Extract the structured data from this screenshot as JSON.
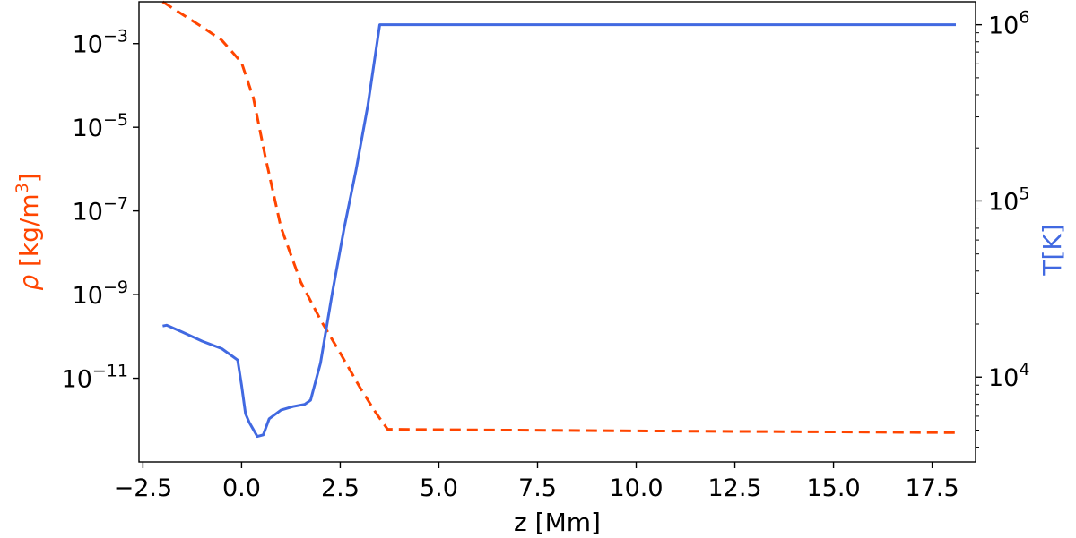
{
  "chart_data": {
    "type": "line",
    "xlabel": "z [Mm]",
    "ylabel_left": {
      "prefix": "ρ",
      "text": " [kg/m",
      "superscript": "3",
      "suffix": "]"
    },
    "ylabel_right": "T[K]",
    "xlim": [
      -2.6,
      18.6
    ],
    "ylim_left": [
      1e-13,
      0.01
    ],
    "ylim_right": [
      3300.0,
      1350000.0
    ],
    "yscale_left": "log",
    "yscale_right": "log",
    "grid": false,
    "x_ticks": [
      {
        "value": -2.5,
        "label": "−2.5"
      },
      {
        "value": 0.0,
        "label": "0.0"
      },
      {
        "value": 2.5,
        "label": "2.5"
      },
      {
        "value": 5.0,
        "label": "5.0"
      },
      {
        "value": 7.5,
        "label": "7.5"
      },
      {
        "value": 10.0,
        "label": "10.0"
      },
      {
        "value": 12.5,
        "label": "12.5"
      },
      {
        "value": 15.0,
        "label": "15.0"
      },
      {
        "value": 17.5,
        "label": "17.5"
      }
    ],
    "y_ticks_left": [
      {
        "value": 0.001,
        "base": "10",
        "exp": "−3"
      },
      {
        "value": 1e-05,
        "base": "10",
        "exp": "−5"
      },
      {
        "value": 1e-07,
        "base": "10",
        "exp": "−7"
      },
      {
        "value": 1e-09,
        "base": "10",
        "exp": "−9"
      },
      {
        "value": 1e-11,
        "base": "10",
        "exp": "−11"
      }
    ],
    "y_ticks_right": [
      {
        "value": 10000.0,
        "base": "10",
        "exp": "4"
      },
      {
        "value": 100000.0,
        "base": "10",
        "exp": "5"
      },
      {
        "value": 1000000.0,
        "base": "10",
        "exp": "6"
      }
    ],
    "series": [
      {
        "axis": "left",
        "color": "#ff4500",
        "style": "dashed",
        "points": [
          [
            -2.0,
            0.01
          ],
          [
            -1.5,
            0.005
          ],
          [
            -1.0,
            0.0025
          ],
          [
            -0.5,
            0.0012
          ],
          [
            0.0,
            0.00035
          ],
          [
            0.3,
            5e-05
          ],
          [
            0.6,
            2e-06
          ],
          [
            1.0,
            4e-08
          ],
          [
            1.5,
            2e-09
          ],
          [
            2.0,
            2.5e-10
          ],
          [
            2.5,
            4e-11
          ],
          [
            3.0,
            6e-12
          ],
          [
            3.4,
            1.5e-12
          ],
          [
            3.7,
            6e-13
          ],
          [
            5.0,
            5.9e-13
          ],
          [
            10.0,
            5.5e-13
          ],
          [
            15.0,
            5.2e-13
          ],
          [
            18.1,
            5e-13
          ]
        ]
      },
      {
        "axis": "right",
        "color": "#4169e1",
        "style": "solid",
        "points": [
          [
            -2.0,
            19500
          ],
          [
            -1.9,
            19700
          ],
          [
            -1.5,
            18000
          ],
          [
            -1.0,
            16000
          ],
          [
            -0.5,
            14500
          ],
          [
            -0.1,
            12500
          ],
          [
            0.0,
            9000
          ],
          [
            0.1,
            6200
          ],
          [
            0.2,
            5500
          ],
          [
            0.4,
            4600
          ],
          [
            0.55,
            4700
          ],
          [
            0.7,
            5800
          ],
          [
            1.0,
            6500
          ],
          [
            1.3,
            6800
          ],
          [
            1.6,
            7000
          ],
          [
            1.75,
            7400
          ],
          [
            2.0,
            12000
          ],
          [
            2.3,
            30000
          ],
          [
            2.6,
            70000
          ],
          [
            2.9,
            150000
          ],
          [
            3.2,
            350000
          ],
          [
            3.5,
            1000000.0
          ],
          [
            10.0,
            1000000.0
          ],
          [
            18.1,
            1000000.0
          ]
        ]
      }
    ]
  }
}
